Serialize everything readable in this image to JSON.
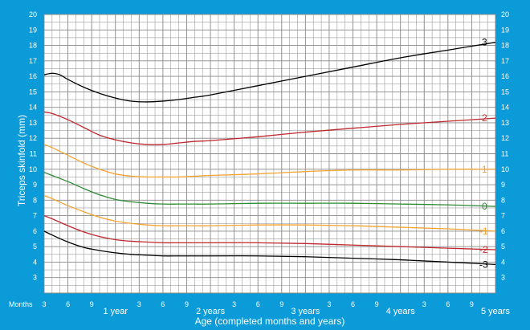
{
  "chart_data": {
    "type": "line",
    "title": "",
    "xlabel": "Age (completed months and years)",
    "ylabel": "Triceps skinfold (mm)",
    "x_unit_label": "Months",
    "xlim": [
      3,
      60
    ],
    "ylim": [
      2,
      20
    ],
    "grid": true,
    "background_color": "#0a9bd8",
    "plot_background_color": "#ffffff",
    "grid_color": "#888888",
    "y_ticks": [
      3,
      4,
      5,
      6,
      7,
      8,
      9,
      10,
      11,
      12,
      13,
      14,
      15,
      16,
      17,
      18,
      19,
      20
    ],
    "x_ticks": [
      {
        "x": 3,
        "label": "3"
      },
      {
        "x": 6,
        "label": "6"
      },
      {
        "x": 9,
        "label": "9"
      },
      {
        "x": 12,
        "label": "1 year"
      },
      {
        "x": 15,
        "label": "3"
      },
      {
        "x": 18,
        "label": "6"
      },
      {
        "x": 21,
        "label": "9"
      },
      {
        "x": 24,
        "label": "2 years"
      },
      {
        "x": 27,
        "label": "3"
      },
      {
        "x": 30,
        "label": "6"
      },
      {
        "x": 33,
        "label": "9"
      },
      {
        "x": 36,
        "label": "3 years"
      },
      {
        "x": 39,
        "label": "3"
      },
      {
        "x": 42,
        "label": "6"
      },
      {
        "x": 45,
        "label": "9"
      },
      {
        "x": 48,
        "label": "4 years"
      },
      {
        "x": 51,
        "label": "3"
      },
      {
        "x": 54,
        "label": "6"
      },
      {
        "x": 57,
        "label": "9"
      },
      {
        "x": 60,
        "label": "5 years"
      }
    ],
    "series": [
      {
        "name": "3",
        "color": "#000000",
        "x": [
          3,
          4,
          5,
          6,
          8,
          10,
          12,
          14,
          16,
          18,
          20,
          22,
          24,
          30,
          36,
          42,
          48,
          54,
          60
        ],
        "y": [
          16.1,
          16.2,
          16.1,
          15.8,
          15.3,
          14.9,
          14.6,
          14.4,
          14.35,
          14.4,
          14.5,
          14.65,
          14.8,
          15.4,
          16.0,
          16.6,
          17.2,
          17.7,
          18.2
        ]
      },
      {
        "name": "2",
        "color": "#c0282d",
        "x": [
          3,
          4,
          6,
          8,
          10,
          12,
          14,
          16,
          18,
          20,
          22,
          24,
          30,
          36,
          42,
          48,
          54,
          60
        ],
        "y": [
          13.7,
          13.6,
          13.2,
          12.7,
          12.2,
          11.9,
          11.7,
          11.6,
          11.6,
          11.7,
          11.8,
          11.85,
          12.1,
          12.4,
          12.65,
          12.9,
          13.1,
          13.3
        ]
      },
      {
        "name": "1",
        "color": "#f5a431",
        "x": [
          3,
          4,
          6,
          8,
          10,
          12,
          14,
          16,
          18,
          20,
          22,
          24,
          30,
          36,
          42,
          48,
          54,
          60
        ],
        "y": [
          11.6,
          11.4,
          10.9,
          10.4,
          10.0,
          9.7,
          9.55,
          9.5,
          9.5,
          9.5,
          9.55,
          9.6,
          9.7,
          9.85,
          9.95,
          9.95,
          10.0,
          10.0
        ]
      },
      {
        "name": "0",
        "color": "#2e8b35",
        "x": [
          3,
          4,
          6,
          8,
          10,
          12,
          14,
          16,
          18,
          20,
          22,
          24,
          30,
          36,
          42,
          48,
          54,
          60
        ],
        "y": [
          9.8,
          9.6,
          9.2,
          8.75,
          8.35,
          8.05,
          7.9,
          7.8,
          7.75,
          7.75,
          7.75,
          7.75,
          7.8,
          7.8,
          7.8,
          7.75,
          7.7,
          7.6
        ]
      },
      {
        "name": "-1",
        "color": "#f5a431",
        "x": [
          3,
          4,
          6,
          8,
          10,
          12,
          14,
          16,
          18,
          20,
          22,
          24,
          30,
          36,
          42,
          48,
          54,
          60
        ],
        "y": [
          8.3,
          8.1,
          7.65,
          7.25,
          6.9,
          6.65,
          6.5,
          6.4,
          6.35,
          6.35,
          6.35,
          6.35,
          6.4,
          6.4,
          6.35,
          6.25,
          6.15,
          6.0
        ]
      },
      {
        "name": "-2",
        "color": "#c0282d",
        "x": [
          3,
          4,
          6,
          8,
          10,
          12,
          14,
          16,
          18,
          20,
          22,
          24,
          30,
          36,
          42,
          48,
          54,
          60
        ],
        "y": [
          7.0,
          6.8,
          6.35,
          5.95,
          5.65,
          5.45,
          5.35,
          5.3,
          5.25,
          5.25,
          5.25,
          5.25,
          5.25,
          5.2,
          5.1,
          5.0,
          4.9,
          4.8
        ]
      },
      {
        "name": "-3",
        "color": "#000000",
        "x": [
          3,
          4,
          6,
          8,
          10,
          12,
          14,
          16,
          18,
          20,
          22,
          24,
          30,
          36,
          42,
          48,
          54,
          60
        ],
        "y": [
          6.0,
          5.75,
          5.3,
          4.95,
          4.75,
          4.6,
          4.5,
          4.45,
          4.4,
          4.4,
          4.4,
          4.4,
          4.4,
          4.35,
          4.25,
          4.15,
          4.0,
          3.85
        ]
      }
    ]
  }
}
